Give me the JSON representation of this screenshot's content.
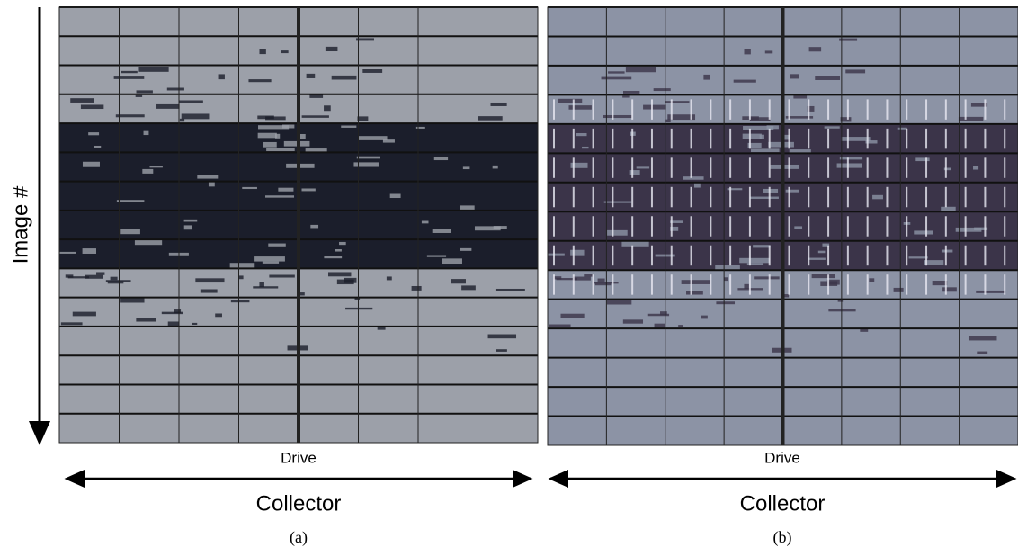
{
  "figure": {
    "y_axis_label": "Image #",
    "panels": [
      {
        "top_label": "Drive",
        "bottom_label": "Collector",
        "caption": "(a)"
      },
      {
        "top_label": "Drive",
        "bottom_label": "Collector",
        "caption": "(b)"
      }
    ]
  }
}
